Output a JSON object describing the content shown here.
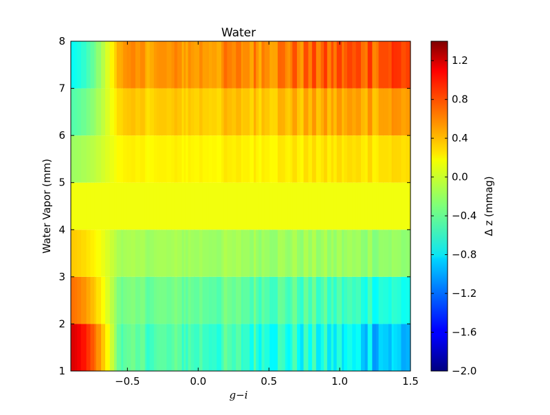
{
  "chart_data": {
    "type": "heatmap",
    "title": "Water",
    "xlabel": "g−i",
    "ylabel": "Water Vapor (mm)",
    "xlim": [
      -0.9,
      1.5
    ],
    "ylim": [
      1,
      8
    ],
    "xticks": [
      "−0.5",
      "0.0",
      "0.5",
      "1.0",
      "1.5"
    ],
    "xtick_values": [
      -0.5,
      0.0,
      0.5,
      1.0,
      1.5
    ],
    "yticks": [
      "1",
      "2",
      "3",
      "4",
      "5",
      "6",
      "7",
      "8"
    ],
    "ytick_values": [
      1,
      2,
      3,
      4,
      5,
      6,
      7,
      8
    ],
    "colorbar": {
      "label": "Δ z (mmag)",
      "range": [
        -2.0,
        1.4
      ],
      "ticks": [
        "1.2",
        "0.8",
        "0.4",
        "0.0",
        "−0.4",
        "−0.8",
        "−1.2",
        "−1.6",
        "−2.0"
      ],
      "tick_values": [
        1.2,
        0.8,
        0.4,
        0.0,
        -0.4,
        -0.8,
        -1.2,
        -1.6,
        -2.0
      ],
      "colormap": "jet"
    },
    "rows": [
      {
        "y_range": [
          1,
          2
        ],
        "note_value_blue_end": -0.95,
        "start_value": 1.1
      },
      {
        "y_range": [
          2,
          3
        ],
        "start_value": 0.6
      },
      {
        "y_range": [
          3,
          4
        ],
        "start_value": 0.3
      },
      {
        "y_range": [
          4,
          5
        ],
        "start_value": 0.08
      },
      {
        "y_range": [
          5,
          6
        ],
        "start_value": -0.2
      },
      {
        "y_range": [
          6,
          7
        ],
        "start_value": -0.45
      },
      {
        "y_range": [
          7,
          8
        ],
        "start_value": -0.7
      }
    ]
  }
}
